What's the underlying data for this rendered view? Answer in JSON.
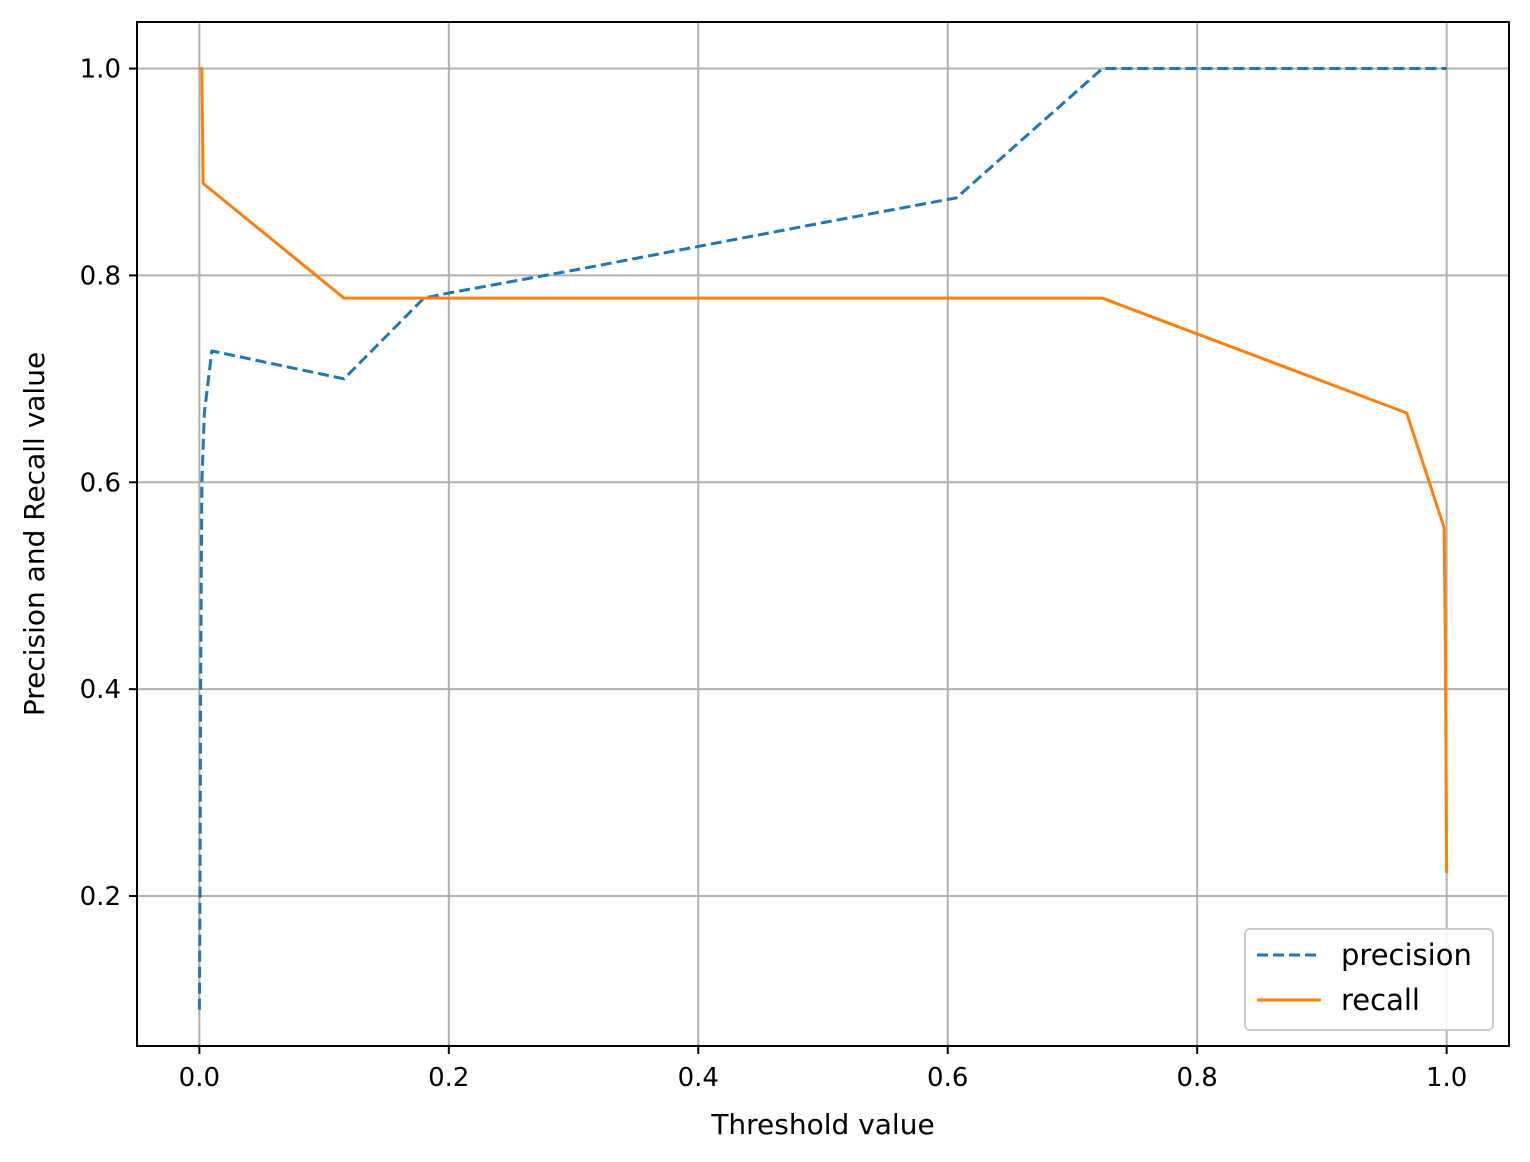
{
  "chart_data": {
    "type": "line",
    "xlabel": "Threshold value",
    "ylabel": "Precision and Recall value",
    "xlim": [
      -0.05,
      1.05
    ],
    "ylim": [
      0.055,
      1.045
    ],
    "xticks": [
      0.0,
      0.2,
      0.4,
      0.6,
      0.8,
      1.0
    ],
    "xtick_labels": [
      "0.0",
      "0.2",
      "0.4",
      "0.6",
      "0.8",
      "1.0"
    ],
    "yticks": [
      0.2,
      0.4,
      0.6,
      0.8,
      1.0
    ],
    "ytick_labels": [
      "0.2",
      "0.4",
      "0.6",
      "0.8",
      "1.0"
    ],
    "grid": true,
    "legend_position": "lower-right",
    "series": [
      {
        "name": "precision",
        "color": "#1f77b4",
        "linestyle": "dashed",
        "x": [
          0.0,
          0.0005,
          0.001,
          0.002,
          0.004,
          0.01,
          0.116,
          0.18,
          0.2,
          0.3,
          0.4,
          0.5,
          0.607,
          0.724,
          0.8,
          0.9,
          0.968,
          0.998,
          1.0
        ],
        "y": [
          0.09,
          0.2,
          0.4,
          0.6,
          0.667,
          0.727,
          0.7,
          0.778,
          0.783,
          0.805,
          0.828,
          0.851,
          0.875,
          1.0,
          1.0,
          1.0,
          1.0,
          1.0,
          1.0
        ]
      },
      {
        "name": "recall",
        "color": "#ff7f0e",
        "linestyle": "solid",
        "x": [
          0.0,
          0.002,
          0.003,
          0.116,
          0.2,
          0.4,
          0.6,
          0.724,
          0.968,
          0.998,
          0.999,
          1.0
        ],
        "y": [
          1.0,
          1.0,
          0.889,
          0.778,
          0.778,
          0.778,
          0.778,
          0.778,
          0.667,
          0.556,
          0.444,
          0.222
        ]
      }
    ]
  }
}
